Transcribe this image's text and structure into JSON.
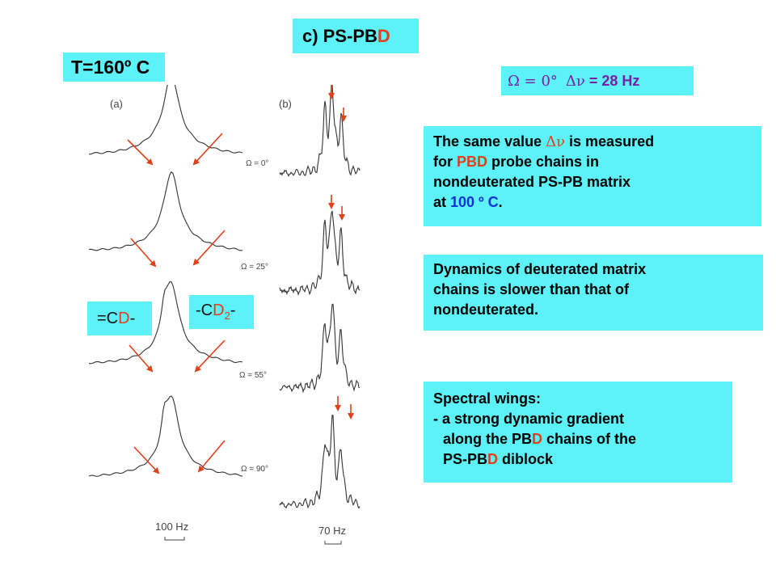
{
  "title": {
    "prefix": "c) PS-PB",
    "suffix": "D"
  },
  "temperature": "T=160º C",
  "omega_line": {
    "lhs": "Ω = 0°",
    "delta_nu": "Δν",
    "value": "= 28 Hz"
  },
  "same_value": {
    "l1_pre": "The same value ",
    "l1_sym": "Δν",
    "l1_post": " is measured",
    "l2_pre": "for ",
    "l2_red": "PBD",
    "l2_post": " probe chains in",
    "l3": "nondeuterated PS-PB matrix",
    "l4_pre": "at ",
    "l4_blue": "100 º C",
    "l4_post": "."
  },
  "dynamics": {
    "l1": "Dynamics of deuterated matrix",
    "l2": "chains is slower than that of",
    "l3": "nondeuterated."
  },
  "wings": {
    "l1": "Spectral wings:",
    "l2": "- a strong dynamic gradient",
    "l3_pre": "along the PB",
    "l3_red": "D",
    "l3_post": " chains of the",
    "l4_pre": "PS-PB",
    "l4_red": "D",
    "l4_post": " diblock"
  },
  "label_cd": {
    "pre": "=C",
    "red": "D",
    "post": "-"
  },
  "label_cd2": {
    "pre": "-C",
    "red": "D",
    "sub": "2",
    "post": "-"
  },
  "panel_a_label": "(a)",
  "panel_b_label": "(b)",
  "omega_labels": [
    "Ω = 0°",
    "Ω = 25°",
    "Ω = 55°",
    "Ω = 90°"
  ],
  "scale_a": "100 Hz",
  "scale_b": "70 Hz",
  "colors": {
    "box": "#5cf2f7",
    "accent_red": "#e0401a",
    "accent_blue": "#1030d8",
    "accent_purple": "#7a1fa8"
  }
}
